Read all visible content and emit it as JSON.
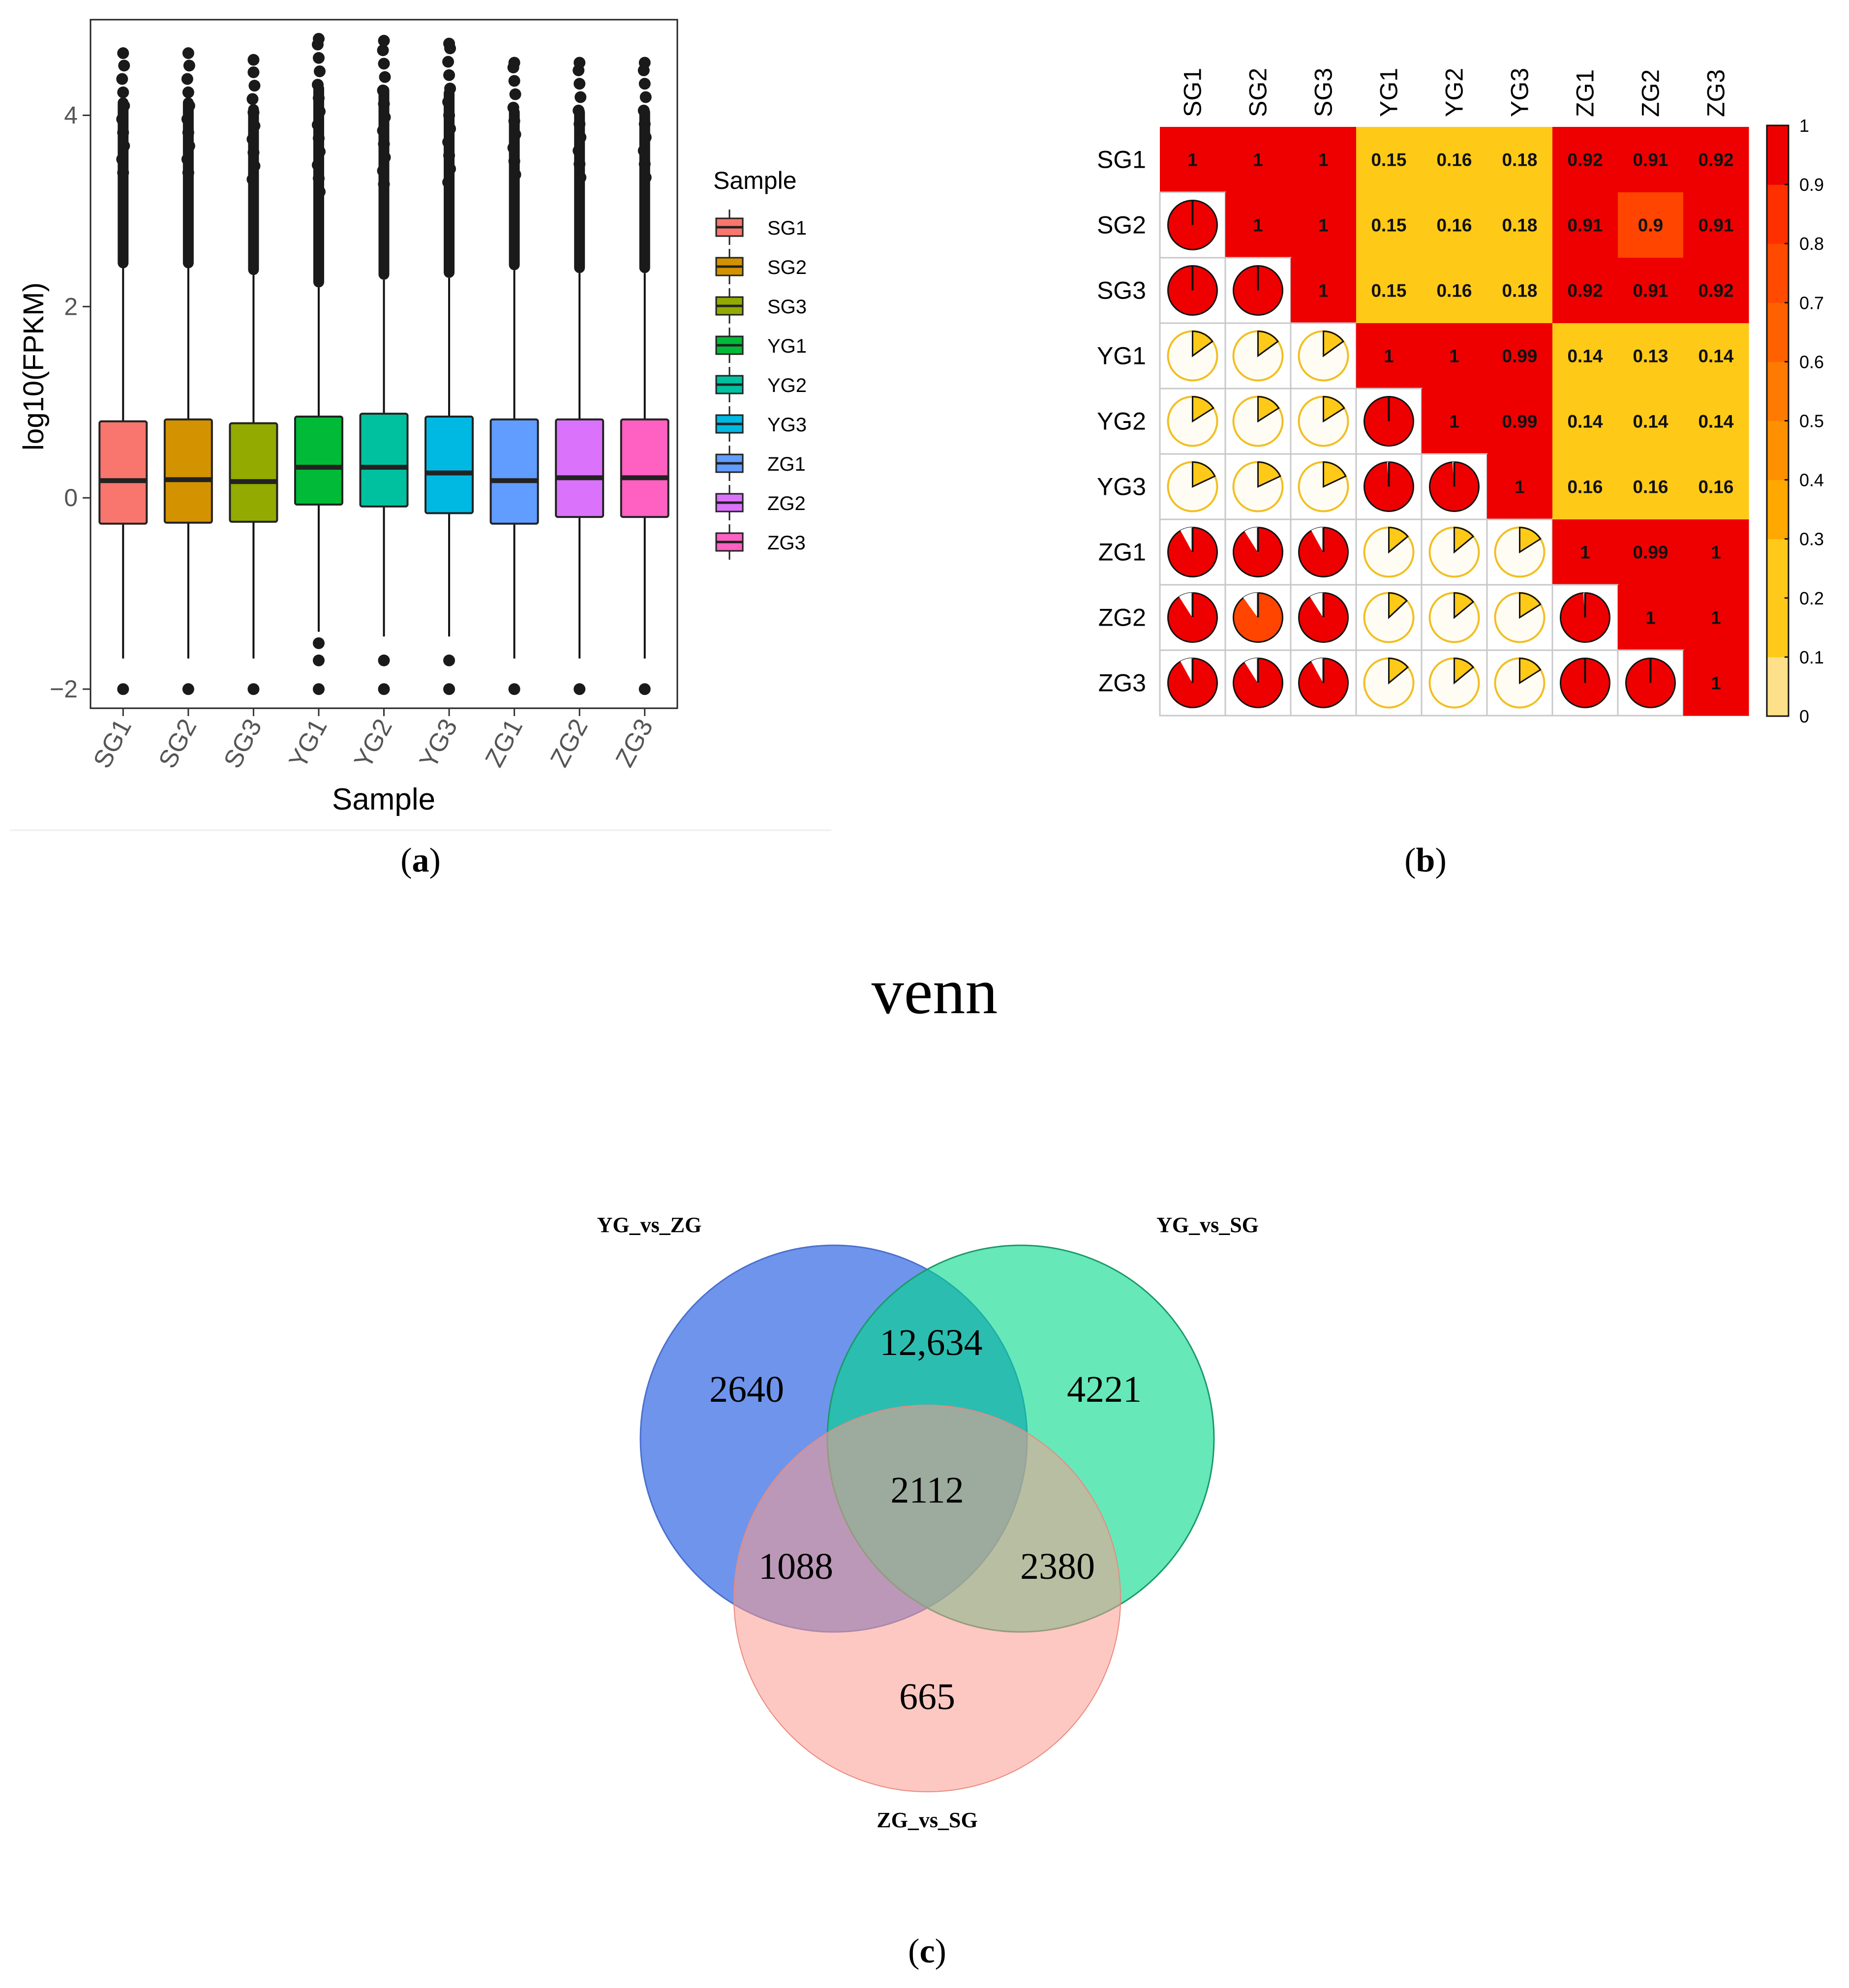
{
  "chart_data": [
    {
      "type": "box",
      "panel_label": "a",
      "title": "",
      "xlabel": "Sample",
      "ylabel": "log10(FPKM)",
      "ylim": [
        -2.2,
        5.0
      ],
      "yticks": [
        -2,
        0,
        2,
        4
      ],
      "ytick_labels": [
        "−2",
        "0",
        "2",
        "4"
      ],
      "legend_title": "Sample",
      "legend_position": "right",
      "categories": [
        "SG1",
        "SG2",
        "SG3",
        "YG1",
        "YG2",
        "YG3",
        "ZG1",
        "ZG2",
        "ZG3"
      ],
      "colors": [
        "#F8766D",
        "#D39200",
        "#93AA00",
        "#00BA38",
        "#00C19F",
        "#00B9E3",
        "#619CFF",
        "#DB72FB",
        "#FF61C3"
      ],
      "boxes": [
        {
          "name": "SG1",
          "q1": -0.27,
          "median": 0.18,
          "q3": 0.8,
          "whisker_low": -1.68,
          "whisker_high": 2.4,
          "outlier_max": 4.65,
          "outliers_low": [
            -2.0
          ]
        },
        {
          "name": "SG2",
          "q1": -0.26,
          "median": 0.19,
          "q3": 0.82,
          "whisker_low": -1.68,
          "whisker_high": 2.4,
          "outlier_max": 4.65,
          "outliers_low": [
            -2.0
          ]
        },
        {
          "name": "SG3",
          "q1": -0.25,
          "median": 0.17,
          "q3": 0.78,
          "whisker_low": -1.68,
          "whisker_high": 2.33,
          "outlier_max": 4.58,
          "outliers_low": [
            -2.0
          ]
        },
        {
          "name": "YG1",
          "q1": -0.07,
          "median": 0.32,
          "q3": 0.85,
          "whisker_low": -1.4,
          "whisker_high": 2.2,
          "outlier_max": 4.8,
          "outliers_low": [
            -1.52,
            -1.7,
            -2.0
          ]
        },
        {
          "name": "YG2",
          "q1": -0.09,
          "median": 0.32,
          "q3": 0.88,
          "whisker_low": -1.45,
          "whisker_high": 2.28,
          "outlier_max": 4.78,
          "outliers_low": [
            -1.7,
            -2.0
          ]
        },
        {
          "name": "YG3",
          "q1": -0.16,
          "median": 0.26,
          "q3": 0.85,
          "whisker_low": -1.45,
          "whisker_high": 2.3,
          "outlier_max": 4.75,
          "outliers_low": [
            -1.7,
            -2.0
          ]
        },
        {
          "name": "ZG1",
          "q1": -0.27,
          "median": 0.18,
          "q3": 0.82,
          "whisker_low": -1.68,
          "whisker_high": 2.38,
          "outlier_max": 4.55,
          "outliers_low": [
            -2.0
          ]
        },
        {
          "name": "ZG2",
          "q1": -0.2,
          "median": 0.21,
          "q3": 0.82,
          "whisker_low": -1.68,
          "whisker_high": 2.35,
          "outlier_max": 4.55,
          "outliers_low": [
            -2.0
          ]
        },
        {
          "name": "ZG3",
          "q1": -0.2,
          "median": 0.21,
          "q3": 0.82,
          "whisker_low": -1.68,
          "whisker_high": 2.35,
          "outlier_max": 4.55,
          "outliers_low": [
            -2.0
          ]
        }
      ]
    },
    {
      "type": "heatmap",
      "panel_label": "b",
      "title": "",
      "labels": [
        "SG1",
        "SG2",
        "SG3",
        "YG1",
        "YG2",
        "YG3",
        "ZG1",
        "ZG2",
        "ZG3"
      ],
      "matrix": [
        [
          1,
          1,
          1,
          0.15,
          0.16,
          0.18,
          0.92,
          0.91,
          0.92
        ],
        [
          1,
          1,
          1,
          0.15,
          0.16,
          0.18,
          0.91,
          0.9,
          0.91
        ],
        [
          1,
          1,
          1,
          0.15,
          0.16,
          0.18,
          0.92,
          0.91,
          0.92
        ],
        [
          0.15,
          0.15,
          0.15,
          1,
          1,
          0.99,
          0.14,
          0.13,
          0.14
        ],
        [
          0.16,
          0.16,
          0.16,
          1,
          1,
          0.99,
          0.14,
          0.14,
          0.14
        ],
        [
          0.18,
          0.18,
          0.18,
          0.99,
          0.99,
          1,
          0.16,
          0.16,
          0.16
        ],
        [
          0.92,
          0.91,
          0.92,
          0.14,
          0.14,
          0.16,
          1,
          0.99,
          1
        ],
        [
          0.91,
          0.9,
          0.91,
          0.13,
          0.14,
          0.16,
          0.99,
          1,
          1
        ],
        [
          0.92,
          0.91,
          0.92,
          0.14,
          0.14,
          0.16,
          1,
          1,
          1
        ]
      ],
      "upper_display": "colored cells with values",
      "lower_display": "pie glyphs",
      "colorbar": {
        "ticks": [
          0,
          0.1,
          0.2,
          0.3,
          0.4,
          0.5,
          0.6,
          0.7,
          0.8,
          0.9,
          1
        ],
        "tick_labels": [
          "0",
          "0.1",
          "0.2",
          "0.3",
          "0.4",
          "0.5",
          "0.6",
          "0.7",
          "0.8",
          "0.9",
          "1"
        ],
        "colors": [
          "#FFE08A",
          "#FFC91A",
          "#FFC91A",
          "#FFA800",
          "#FF9000",
          "#FF7A00",
          "#FF6100",
          "#FF4A00",
          "#FF3000",
          "#EE0000"
        ]
      }
    },
    {
      "type": "venn",
      "panel_label": "c",
      "title": "venn",
      "sets": [
        {
          "name": "YG_vs_ZG",
          "color": "#5A86E8"
        },
        {
          "name": "YG_vs_SG",
          "color": "#00D98B"
        },
        {
          "name": "ZG_vs_SG",
          "color": "#FB9A8E"
        }
      ],
      "regions": [
        {
          "sets": [
            "YG_vs_ZG"
          ],
          "value": "2640"
        },
        {
          "sets": [
            "YG_vs_SG"
          ],
          "value": "4221"
        },
        {
          "sets": [
            "ZG_vs_SG"
          ],
          "value": "665"
        },
        {
          "sets": [
            "YG_vs_ZG",
            "YG_vs_SG"
          ],
          "value": "12,634"
        },
        {
          "sets": [
            "YG_vs_ZG",
            "ZG_vs_SG"
          ],
          "value": "1088"
        },
        {
          "sets": [
            "YG_vs_SG",
            "ZG_vs_SG"
          ],
          "value": "2380"
        },
        {
          "sets": [
            "YG_vs_ZG",
            "YG_vs_SG",
            "ZG_vs_SG"
          ],
          "value": "2112"
        }
      ]
    }
  ],
  "panels": {
    "a": {
      "caption_open": "(",
      "caption_letter": "a",
      "caption_close": ")"
    },
    "b": {
      "caption_open": "(",
      "caption_letter": "b",
      "caption_close": ")"
    },
    "c": {
      "caption_open": "(",
      "caption_letter": "c",
      "caption_close": ")"
    }
  }
}
